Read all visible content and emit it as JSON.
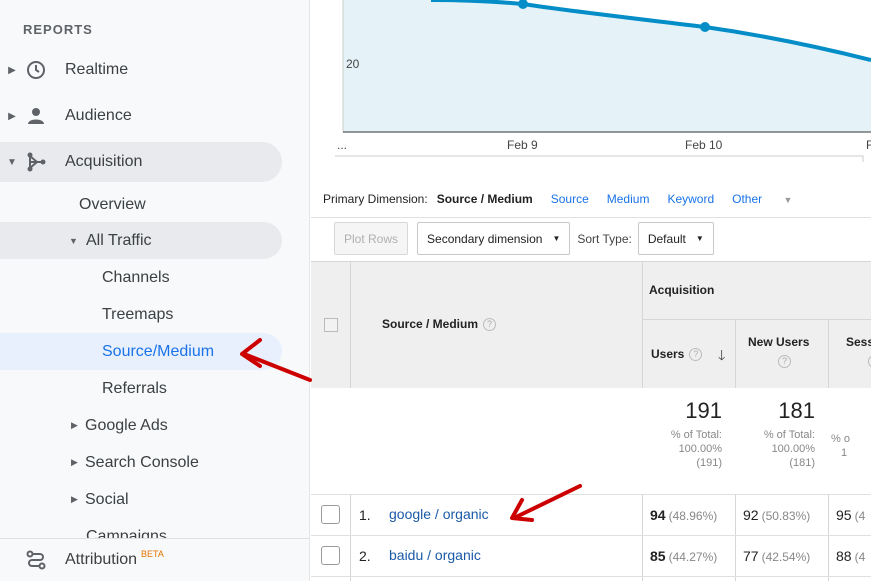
{
  "sidebar": {
    "section_title": "REPORTS",
    "items": [
      {
        "label": "Realtime",
        "icon": "clock-icon"
      },
      {
        "label": "Audience",
        "icon": "person-icon"
      },
      {
        "label": "Acquisition",
        "icon": "acquisition-icon"
      }
    ],
    "acquisition_sub": {
      "overview": "Overview",
      "all_traffic": "All Traffic",
      "channels": "Channels",
      "treemaps": "Treemaps",
      "source_medium": "Source/Medium",
      "referrals": "Referrals",
      "google_ads": "Google Ads",
      "search_console": "Search Console",
      "social": "Social",
      "partial": "Campaigns"
    },
    "attribution": {
      "label": "Attribution",
      "badge": "BETA",
      "icon": "attribution-icon"
    }
  },
  "chart": {
    "y_tick": "20",
    "x_ticks": [
      "...",
      "Feb 9",
      "Feb 10",
      "F"
    ],
    "line_color": "#058dc7",
    "fill_color": "#e5f3f9"
  },
  "dimension_bar": {
    "label": "Primary Dimension:",
    "current": "Source / Medium",
    "links": [
      "Source",
      "Medium",
      "Keyword",
      "Other"
    ]
  },
  "toolbar": {
    "plot_rows": "Plot Rows",
    "secondary_dimension": "Secondary dimension",
    "sort_type_label": "Sort Type:",
    "sort_type_value": "Default"
  },
  "table": {
    "group_header": "Acquisition",
    "col_source_medium": "Source / Medium",
    "col_users": "Users",
    "col_new_users": "New Users",
    "col_sessions": "Sess",
    "totals": {
      "users": "191",
      "users_pct": "% of Total:",
      "users_pct_val": "100.00%",
      "users_abs": "(191)",
      "new_users": "181",
      "new_users_pct": "% of Total:",
      "new_users_pct_val": "100.00%",
      "new_users_abs": "(181)",
      "sessions_pct": "% o",
      "sessions_pct_val": "1"
    },
    "rows": [
      {
        "index": "1.",
        "source": "google / organic",
        "users": "94",
        "users_pct": "(48.96%)",
        "new_users": "92",
        "new_users_pct": "(50.83%)",
        "sessions": "95",
        "sessions_pct": "(4"
      },
      {
        "index": "2.",
        "source": "baidu / organic",
        "users": "85",
        "users_pct": "(44.27%)",
        "new_users": "77",
        "new_users_pct": "(42.54%)",
        "sessions": "88",
        "sessions_pct": "(4"
      }
    ]
  },
  "annotation_color": "#cc0000"
}
